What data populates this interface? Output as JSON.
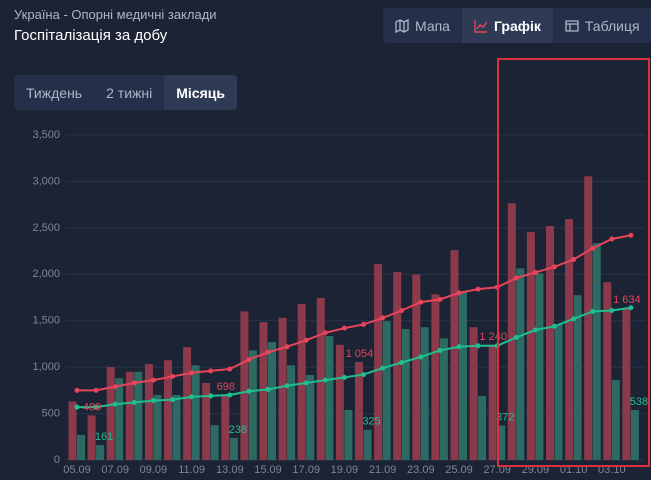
{
  "header": {
    "region": "Україна - Опорні медичні заклади",
    "title": "Госпіталізація за добу"
  },
  "view_tabs": [
    "Мапа",
    "Графік",
    "Таблиця"
  ],
  "period_tabs": [
    "Тиждень",
    "2 тижні",
    "Місяць"
  ],
  "chart_data": {
    "type": "bar-line",
    "categories": [
      "05.09",
      null,
      "07.09",
      null,
      "09.09",
      null,
      "11.09",
      null,
      "13.09",
      null,
      "15.09",
      null,
      "17.09",
      null,
      "19.09",
      null,
      "21.09",
      null,
      "23.09",
      null,
      "25.09",
      null,
      "27.09",
      null,
      "29.09",
      null,
      "01.10",
      null,
      "03.10",
      null
    ],
    "series": [
      {
        "kind": "bar",
        "color": "#8a3a4b",
        "values": [
          630,
          480,
          1000,
          950,
          1035,
          1075,
          1215,
          830,
          698,
          1600,
          1485,
          1530,
          1680,
          1745,
          1240,
          1054,
          2110,
          2025,
          2000,
          1785,
          2260,
          1430,
          1240,
          2765,
          2455,
          2520,
          2595,
          3055,
          1915,
          1634
        ],
        "value_labels": [
          null,
          "480",
          null,
          null,
          null,
          null,
          null,
          null,
          "698",
          null,
          null,
          null,
          null,
          null,
          null,
          "1 054",
          null,
          null,
          null,
          null,
          null,
          null,
          "1 240",
          null,
          null,
          null,
          null,
          null,
          null,
          "1 634"
        ]
      },
      {
        "kind": "bar",
        "color": "#2d6a62",
        "values": [
          270,
          161,
          880,
          950,
          700,
          700,
          1020,
          375,
          238,
          1180,
          1270,
          1020,
          915,
          1335,
          540,
          325,
          1495,
          1410,
          1430,
          1310,
          1810,
          690,
          372,
          2065,
          2010,
          1460,
          1775,
          2335,
          860,
          538
        ],
        "value_labels": [
          null,
          "161",
          null,
          null,
          null,
          null,
          null,
          null,
          "238",
          null,
          null,
          null,
          null,
          null,
          null,
          "325",
          null,
          null,
          null,
          null,
          null,
          null,
          "372",
          null,
          null,
          null,
          null,
          null,
          null,
          "538"
        ]
      },
      {
        "kind": "line",
        "color": "#e8445a",
        "values": [
          750,
          750,
          790,
          830,
          860,
          900,
          940,
          960,
          980,
          1080,
          1160,
          1220,
          1290,
          1370,
          1420,
          1460,
          1530,
          1610,
          1700,
          1730,
          1800,
          1840,
          1860,
          1960,
          2020,
          2080,
          2160,
          2280,
          2380,
          2420
        ]
      },
      {
        "kind": "line",
        "color": "#1fbf8f",
        "values": [
          570,
          570,
          600,
          620,
          640,
          650,
          680,
          690,
          700,
          740,
          760,
          800,
          830,
          860,
          890,
          920,
          990,
          1050,
          1110,
          1180,
          1220,
          1230,
          1230,
          1320,
          1400,
          1440,
          1520,
          1600,
          1610,
          1640
        ]
      }
    ],
    "ylim": [
      0,
      3500
    ],
    "yticks": [
      0,
      500,
      {
        "value": 1000,
        "label": "1,000"
      },
      {
        "value": 1500,
        "label": "1,500"
      },
      {
        "value": 2000,
        "label": "2,000"
      },
      {
        "value": 2500,
        "label": "2,500"
      },
      {
        "value": 3000,
        "label": "3,000"
      },
      {
        "value": 3500,
        "label": "3,500"
      }
    ],
    "grid": true
  }
}
